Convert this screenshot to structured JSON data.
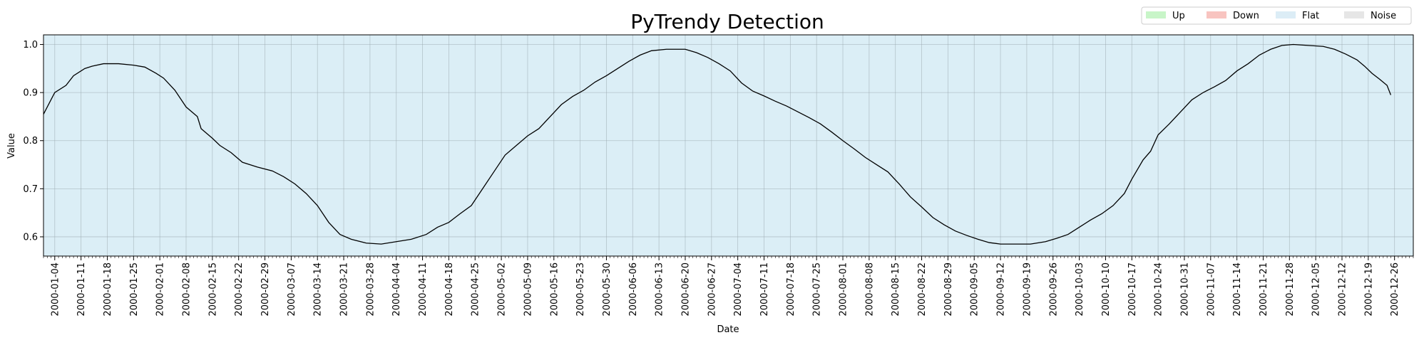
{
  "chart_data": {
    "type": "line",
    "title": "PyTrendy Detection",
    "xlabel": "Date",
    "ylabel": "Value",
    "xlim": [
      "2000-01-01",
      "2000-12-31"
    ],
    "ylim": [
      0.56,
      1.02
    ],
    "y_ticks": [
      0.6,
      0.7,
      0.8,
      0.9,
      1.0
    ],
    "y_tick_labels": [
      "0.6",
      "0.7",
      "0.8",
      "0.9",
      "1.0"
    ],
    "x_tick_labels": [
      "2000-01-04",
      "2000-01-11",
      "2000-01-18",
      "2000-01-25",
      "2000-02-01",
      "2000-02-08",
      "2000-02-15",
      "2000-02-22",
      "2000-02-29",
      "2000-03-07",
      "2000-03-14",
      "2000-03-21",
      "2000-03-28",
      "2000-04-04",
      "2000-04-11",
      "2000-04-18",
      "2000-04-25",
      "2000-05-02",
      "2000-05-09",
      "2000-05-16",
      "2000-05-23",
      "2000-05-30",
      "2000-06-06",
      "2000-06-13",
      "2000-06-20",
      "2000-06-27",
      "2000-07-04",
      "2000-07-11",
      "2000-07-18",
      "2000-07-25",
      "2000-08-01",
      "2000-08-08",
      "2000-08-15",
      "2000-08-22",
      "2000-08-29",
      "2000-09-05",
      "2000-09-12",
      "2000-09-19",
      "2000-09-26",
      "2000-10-03",
      "2000-10-10",
      "2000-10-17",
      "2000-10-24",
      "2000-10-31",
      "2000-11-07",
      "2000-11-14",
      "2000-11-21",
      "2000-11-28",
      "2000-12-05",
      "2000-12-12",
      "2000-12-19",
      "2000-12-26"
    ],
    "grid": true,
    "background_region": {
      "label": "Flat",
      "from": "2000-01-01",
      "to": "2000-12-31",
      "color": "#dbeef6"
    },
    "legend": {
      "placement": "top-right",
      "entries": [
        {
          "label": "Up",
          "color": "#c8f5c8"
        },
        {
          "label": "Down",
          "color": "#f8c4c0"
        },
        {
          "label": "Flat",
          "color": "#dcedf6"
        },
        {
          "label": "Noise",
          "color": "#e6e6e6"
        }
      ]
    },
    "series": [
      {
        "color": "#000000",
        "points": [
          [
            "2000-01-01",
            0.855
          ],
          [
            "2000-01-04",
            0.9
          ],
          [
            "2000-01-07",
            0.915
          ],
          [
            "2000-01-09",
            0.935
          ],
          [
            "2000-01-12",
            0.95
          ],
          [
            "2000-01-14",
            0.955
          ],
          [
            "2000-01-17",
            0.96
          ],
          [
            "2000-01-21",
            0.96
          ],
          [
            "2000-01-25",
            0.957
          ],
          [
            "2000-01-28",
            0.953
          ],
          [
            "2000-01-31",
            0.94
          ],
          [
            "2000-02-02",
            0.93
          ],
          [
            "2000-02-05",
            0.905
          ],
          [
            "2000-02-08",
            0.87
          ],
          [
            "2000-02-11",
            0.85
          ],
          [
            "2000-02-12",
            0.825
          ],
          [
            "2000-02-15",
            0.805
          ],
          [
            "2000-02-17",
            0.79
          ],
          [
            "2000-02-20",
            0.775
          ],
          [
            "2000-02-23",
            0.755
          ],
          [
            "2000-02-27",
            0.745
          ],
          [
            "2000-03-02",
            0.737
          ],
          [
            "2000-03-05",
            0.725
          ],
          [
            "2000-03-08",
            0.71
          ],
          [
            "2000-03-11",
            0.69
          ],
          [
            "2000-03-14",
            0.665
          ],
          [
            "2000-03-17",
            0.63
          ],
          [
            "2000-03-20",
            0.605
          ],
          [
            "2000-03-23",
            0.595
          ],
          [
            "2000-03-27",
            0.587
          ],
          [
            "2000-03-31",
            0.585
          ],
          [
            "2000-04-04",
            0.59
          ],
          [
            "2000-04-08",
            0.595
          ],
          [
            "2000-04-12",
            0.605
          ],
          [
            "2000-04-15",
            0.62
          ],
          [
            "2000-04-18",
            0.63
          ],
          [
            "2000-04-21",
            0.648
          ],
          [
            "2000-04-24",
            0.665
          ],
          [
            "2000-04-27",
            0.7
          ],
          [
            "2000-04-30",
            0.735
          ],
          [
            "2000-05-03",
            0.77
          ],
          [
            "2000-05-06",
            0.79
          ],
          [
            "2000-05-09",
            0.81
          ],
          [
            "2000-05-12",
            0.825
          ],
          [
            "2000-05-15",
            0.85
          ],
          [
            "2000-05-18",
            0.875
          ],
          [
            "2000-05-21",
            0.892
          ],
          [
            "2000-05-24",
            0.905
          ],
          [
            "2000-05-27",
            0.922
          ],
          [
            "2000-05-30",
            0.935
          ],
          [
            "2000-06-02",
            0.95
          ],
          [
            "2000-06-05",
            0.965
          ],
          [
            "2000-06-08",
            0.978
          ],
          [
            "2000-06-11",
            0.987
          ],
          [
            "2000-06-15",
            0.99
          ],
          [
            "2000-06-20",
            0.99
          ],
          [
            "2000-06-23",
            0.983
          ],
          [
            "2000-06-26",
            0.973
          ],
          [
            "2000-06-29",
            0.96
          ],
          [
            "2000-07-02",
            0.945
          ],
          [
            "2000-07-05",
            0.92
          ],
          [
            "2000-07-08",
            0.903
          ],
          [
            "2000-07-11",
            0.893
          ],
          [
            "2000-07-14",
            0.882
          ],
          [
            "2000-07-17",
            0.872
          ],
          [
            "2000-07-20",
            0.86
          ],
          [
            "2000-07-23",
            0.848
          ],
          [
            "2000-07-26",
            0.835
          ],
          [
            "2000-07-29",
            0.818
          ],
          [
            "2000-08-01",
            0.8
          ],
          [
            "2000-08-04",
            0.783
          ],
          [
            "2000-08-07",
            0.765
          ],
          [
            "2000-08-10",
            0.75
          ],
          [
            "2000-08-13",
            0.735
          ],
          [
            "2000-08-16",
            0.71
          ],
          [
            "2000-08-19",
            0.683
          ],
          [
            "2000-08-22",
            0.662
          ],
          [
            "2000-08-25",
            0.64
          ],
          [
            "2000-08-28",
            0.625
          ],
          [
            "2000-08-31",
            0.612
          ],
          [
            "2000-09-03",
            0.603
          ],
          [
            "2000-09-06",
            0.595
          ],
          [
            "2000-09-09",
            0.588
          ],
          [
            "2000-09-12",
            0.585
          ],
          [
            "2000-09-16",
            0.585
          ],
          [
            "2000-09-20",
            0.585
          ],
          [
            "2000-09-24",
            0.59
          ],
          [
            "2000-09-27",
            0.597
          ],
          [
            "2000-09-30",
            0.605
          ],
          [
            "2000-10-03",
            0.62
          ],
          [
            "2000-10-06",
            0.635
          ],
          [
            "2000-10-09",
            0.648
          ],
          [
            "2000-10-12",
            0.665
          ],
          [
            "2000-10-15",
            0.69
          ],
          [
            "2000-10-17",
            0.72
          ],
          [
            "2000-10-20",
            0.76
          ],
          [
            "2000-10-22",
            0.778
          ],
          [
            "2000-10-24",
            0.812
          ],
          [
            "2000-10-27",
            0.835
          ],
          [
            "2000-10-30",
            0.86
          ],
          [
            "2000-11-02",
            0.885
          ],
          [
            "2000-11-05",
            0.9
          ],
          [
            "2000-11-08",
            0.912
          ],
          [
            "2000-11-11",
            0.925
          ],
          [
            "2000-11-14",
            0.945
          ],
          [
            "2000-11-17",
            0.96
          ],
          [
            "2000-11-20",
            0.978
          ],
          [
            "2000-11-23",
            0.99
          ],
          [
            "2000-11-26",
            0.998
          ],
          [
            "2000-11-29",
            1.0
          ],
          [
            "2000-12-03",
            0.998
          ],
          [
            "2000-12-07",
            0.996
          ],
          [
            "2000-12-10",
            0.99
          ],
          [
            "2000-12-13",
            0.98
          ],
          [
            "2000-12-16",
            0.968
          ],
          [
            "2000-12-18",
            0.955
          ],
          [
            "2000-12-20",
            0.94
          ],
          [
            "2000-12-22",
            0.928
          ],
          [
            "2000-12-24",
            0.915
          ],
          [
            "2000-12-25",
            0.895
          ]
        ]
      }
    ]
  }
}
